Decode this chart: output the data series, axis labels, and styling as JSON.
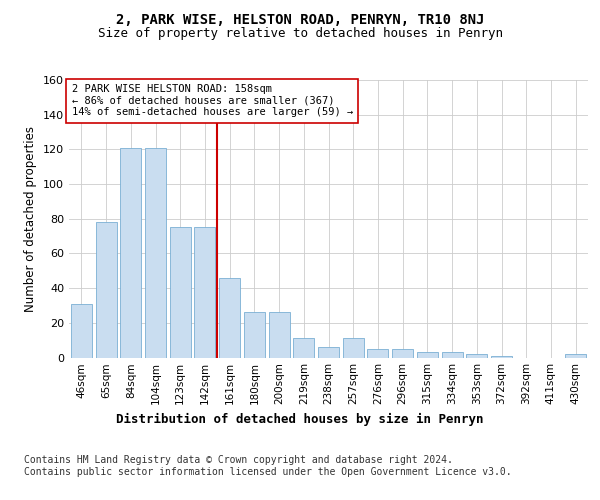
{
  "title1": "2, PARK WISE, HELSTON ROAD, PENRYN, TR10 8NJ",
  "title2": "Size of property relative to detached houses in Penryn",
  "xlabel": "Distribution of detached houses by size in Penryn",
  "ylabel": "Number of detached properties",
  "categories": [
    "46sqm",
    "65sqm",
    "84sqm",
    "104sqm",
    "123sqm",
    "142sqm",
    "161sqm",
    "180sqm",
    "200sqm",
    "219sqm",
    "238sqm",
    "257sqm",
    "276sqm",
    "296sqm",
    "315sqm",
    "334sqm",
    "353sqm",
    "372sqm",
    "392sqm",
    "411sqm",
    "430sqm"
  ],
  "values": [
    31,
    78,
    121,
    121,
    75,
    75,
    46,
    26,
    26,
    11,
    6,
    11,
    5,
    5,
    3,
    3,
    2,
    1,
    0,
    0,
    2
  ],
  "bar_color": "#c9ddf0",
  "bar_edge_color": "#7aafd4",
  "vline_color": "#cc0000",
  "vline_index": 6,
  "annotation_text": "2 PARK WISE HELSTON ROAD: 158sqm\n← 86% of detached houses are smaller (367)\n14% of semi-detached houses are larger (59) →",
  "annotation_box_color": "#ffffff",
  "annotation_box_edge": "#cc0000",
  "ylim": [
    0,
    160
  ],
  "yticks": [
    0,
    20,
    40,
    60,
    80,
    100,
    120,
    140,
    160
  ],
  "footnote": "Contains HM Land Registry data © Crown copyright and database right 2024.\nContains public sector information licensed under the Open Government Licence v3.0.",
  "background_color": "#ffffff",
  "grid_color": "#cccccc"
}
